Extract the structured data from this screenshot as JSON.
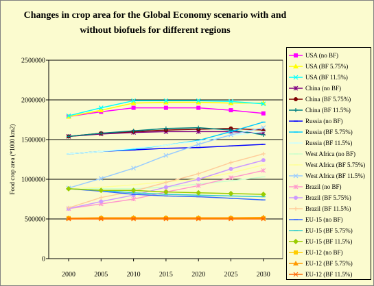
{
  "chart_data": {
    "type": "line",
    "title_line1": "Changes in crop area for the Global Economy scenario with and",
    "title_line2": "without biofuels for different regions",
    "ylabel": "Food crop area (*1000 km2)",
    "xlabel": "",
    "x": [
      "2000",
      "2005",
      "2010",
      "2015",
      "2020",
      "2025",
      "2030"
    ],
    "ylim": [
      0,
      2500000
    ],
    "yticks": [
      "0",
      "500000",
      "1000000",
      "1500000",
      "2000000",
      "2500000"
    ],
    "grid": "horizontal",
    "legend_position": "right",
    "series": [
      {
        "name": "USA (no BF)",
        "color": "#ff00ff",
        "marker": "square",
        "values": [
          1790000,
          1850000,
          1900000,
          1900000,
          1900000,
          1870000,
          1830000
        ]
      },
      {
        "name": "USA (BF 5.75%)",
        "color": "#ffff00",
        "marker": "triangle",
        "values": [
          1790000,
          1870000,
          1960000,
          1970000,
          1970000,
          1960000,
          1960000
        ]
      },
      {
        "name": "USA (BF 11.5%)",
        "color": "#00ffff",
        "marker": "x",
        "values": [
          1800000,
          1900000,
          1990000,
          1990000,
          1990000,
          1980000,
          1950000
        ]
      },
      {
        "name": "China (no BF)",
        "color": "#800080",
        "marker": "star",
        "values": [
          1540000,
          1570000,
          1590000,
          1600000,
          1600000,
          1600000,
          1580000
        ]
      },
      {
        "name": "China (BF 5.75%)",
        "color": "#800000",
        "marker": "circle",
        "values": [
          1540000,
          1580000,
          1600000,
          1620000,
          1630000,
          1640000,
          1620000
        ]
      },
      {
        "name": "China (BF 11.5%)",
        "color": "#008080",
        "marker": "plus",
        "values": [
          1540000,
          1580000,
          1610000,
          1640000,
          1650000,
          1620000,
          1560000
        ]
      },
      {
        "name": "Russia (no BF)",
        "color": "#0000ff",
        "marker": "dash",
        "values": [
          1320000,
          1350000,
          1370000,
          1390000,
          1400000,
          1420000,
          1440000
        ]
      },
      {
        "name": "Russia (BF 5.75%)",
        "color": "#00ccff",
        "marker": "dash",
        "values": [
          1320000,
          1350000,
          1380000,
          1430000,
          1490000,
          1600000,
          1720000
        ]
      },
      {
        "name": "Russia (BF 11.5%)",
        "color": "#ccffff",
        "marker": "dash",
        "values": [
          1320000,
          1350000,
          1390000,
          1430000,
          1480000,
          1550000,
          1600000
        ]
      },
      {
        "name": "West Africa (no BF)",
        "color": "#ccffcc",
        "marker": "dash",
        "values": [
          880000,
          880000,
          880000,
          900000,
          940000,
          980000,
          1030000
        ]
      },
      {
        "name": "West Africa (BF 5.75%)",
        "color": "#ffff99",
        "marker": "dash",
        "values": [
          880000,
          900000,
          930000,
          970000,
          1000000,
          1080000,
          1180000
        ]
      },
      {
        "name": "West Africa (BF 11.5%)",
        "color": "#99ccff",
        "marker": "x",
        "values": [
          890000,
          1010000,
          1140000,
          1300000,
          1440000,
          1560000,
          1650000
        ]
      },
      {
        "name": "Brazil (no BF)",
        "color": "#ff99cc",
        "marker": "star",
        "values": [
          630000,
          690000,
          750000,
          840000,
          920000,
          1020000,
          1110000
        ]
      },
      {
        "name": "Brazil (BF 5.75%)",
        "color": "#cc99ff",
        "marker": "circle",
        "values": [
          630000,
          720000,
          800000,
          900000,
          1000000,
          1130000,
          1240000
        ]
      },
      {
        "name": "Brazil (BF 11.5%)",
        "color": "#ffcc99",
        "marker": "plus",
        "values": [
          640000,
          770000,
          850000,
          960000,
          1070000,
          1210000,
          1320000
        ]
      },
      {
        "name": "EU-15 (no BF)",
        "color": "#3366ff",
        "marker": "dash",
        "values": [
          880000,
          850000,
          810000,
          790000,
          780000,
          760000,
          740000
        ]
      },
      {
        "name": "EU-15 (BF 5.75%)",
        "color": "#33cccc",
        "marker": "dash",
        "values": [
          880000,
          860000,
          830000,
          810000,
          800000,
          790000,
          780000
        ]
      },
      {
        "name": "EU-15 (BF 11.5%)",
        "color": "#99cc00",
        "marker": "diamond",
        "values": [
          880000,
          860000,
          860000,
          840000,
          830000,
          820000,
          810000
        ]
      },
      {
        "name": "EU-12 (no BF)",
        "color": "#ffcc00",
        "marker": "square",
        "values": [
          510000,
          510000,
          510000,
          510000,
          510000,
          510000,
          510000
        ]
      },
      {
        "name": "EU-12 (BF 5.75%)",
        "color": "#ff9900",
        "marker": "triangle",
        "values": [
          510000,
          515000,
          515000,
          515000,
          515000,
          515000,
          520000
        ]
      },
      {
        "name": "EU-12 (BF 11.5%)",
        "color": "#ff6600",
        "marker": "x",
        "values": [
          500000,
          500000,
          500000,
          500000,
          500000,
          500000,
          500000
        ]
      }
    ]
  }
}
